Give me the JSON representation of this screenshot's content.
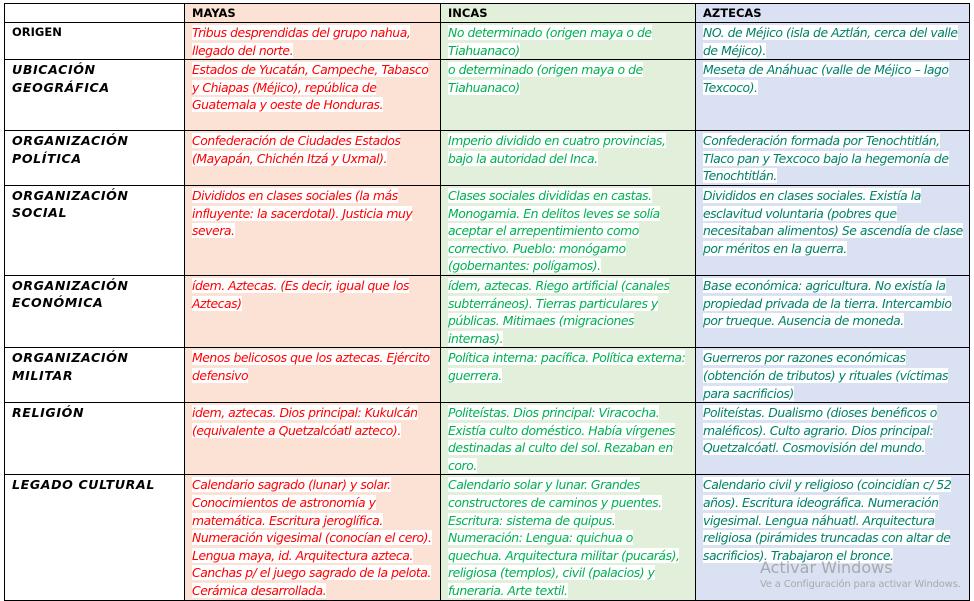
{
  "header": {
    "corner": "",
    "mayas": "MAYAS",
    "incas": "INCAS",
    "aztecas": "AZTECAS"
  },
  "colors": {
    "mayas_bg": "#fbe2d5",
    "mayas_text": "#ff0000",
    "incas_bg": "#e2efda",
    "incas_text": "#00b050",
    "aztecas_bg": "#d9e1f2",
    "aztecas_text": "#00806a"
  },
  "rows": [
    {
      "label": "ORIGEN",
      "mayas": "Tribus desprendidas del grupo nahua, llegado del norte.",
      "incas": "No determinado (origen maya o de Tiahuanaco)",
      "aztecas": "NO. de Méjico (isla de Aztlán, cerca del valle de Méjico)."
    },
    {
      "label": "UBICACIÓN GEOGRÁFICA",
      "mayas": "Estados de Yucatán, Campeche, Tabasco y Chiapas (Méjico), república de Guatemala y oeste de Honduras.",
      "incas": "o determinado (origen maya o de Tiahuanaco)",
      "aztecas": "Meseta de Anáhuac (valle de Méjico – lago Texcoco)."
    },
    {
      "label": "ORGANIZACIÓN POLÍTICA",
      "mayas": "Confederación de Ciudades Estados (Mayapán, Chichén Itzá y Uxmal).",
      "incas": "Imperio dividido en cuatro provincias, bajo la autoridad del Inca.",
      "aztecas": "Confederación formada por Tenochtitlán, Tlaco pan y Texcoco bajo la hegemonía de Tenochtitlán."
    },
    {
      "label": "ORGANIZACIÓN SOCIAL",
      "mayas": "Divididos en clases sociales (la más influyente: la sacerdotal). Justicia muy severa.",
      "incas": "Clases sociales divididas en castas. Monogamia. En delitos leves se solía aceptar el arrepentimiento como correctivo. Pueblo: monógamo (gobernantes: polígamos).",
      "aztecas": "Divididos en clases sociales. Existía la esclavitud voluntaria (pobres que necesitaban alimentos) Se ascendía de clase por méritos en la guerra."
    },
    {
      "label": "ORGANIZACIÓN ECONÓMICA",
      "mayas": "ídem. Aztecas. (Es decir, igual que los Aztecas)",
      "incas": "ídem, aztecas. Riego artificial (canales subterráneos). Tierras particulares y públicas. Mitimaes (migraciones internas).",
      "aztecas": "Base económica: agricultura. No existía la propiedad privada de la tierra. Intercambio por trueque. Ausencia de moneda."
    },
    {
      "label": "ORGANIZACIÓN MILITAR",
      "mayas": "Menos belicosos que los aztecas. Ejército defensivo",
      "incas": "Política interna: pacífica. Política externa: guerrera.",
      "aztecas": "Guerreros por razones económicas (obtención de tributos) y rituales (víctimas para sacrificios)"
    },
    {
      "label": "RELIGIÓN",
      "mayas": "idem, aztecas. Dios principal: Kukulcán (equivalente a Quetzalcóatl azteco).",
      "incas": "Politeístas. Dios principal: Viracocha. Existía culto doméstico. Había vírgenes destinadas al culto del sol. Rezaban en coro.",
      "aztecas": "Politeístas. Dualismo (dioses benéficos o maléficos). Culto agrario. Dios principal: Quetzalcóatl. Cosmovisión del mundo."
    },
    {
      "label": "LEGADO CULTURAL",
      "mayas": "Calendario sagrado (lunar) y solar. Conocimientos de astronomía y matemática. Escritura jeroglífica. Numeración vigesimal (conocían el cero). Lengua maya, id. Arquitectura azteca. Canchas p/ el juego sagrado de la pelota. Cerámica desarrollada.",
      "incas": "Calendario solar y lunar. Grandes constructores de caminos y puentes. Escritura: sistema de quipus. Numeración: Lengua: quichua o quechua. Arquitectura militar (pucarás), religiosa (templos), civil (palacios) y funeraria. Arte textil.",
      "aztecas": "Calendario civil y religioso (coincidían c/ 52 años). Escritura ideográfica. Numeración vigesimal. Lengua náhuatl. Arquitectura religiosa (pirámides truncadas con altar de sacrificios). Trabajaron el bronce."
    }
  ],
  "watermark": {
    "line1": "Activar Windows",
    "line2": "Ve a Configuración para activar Windows."
  }
}
